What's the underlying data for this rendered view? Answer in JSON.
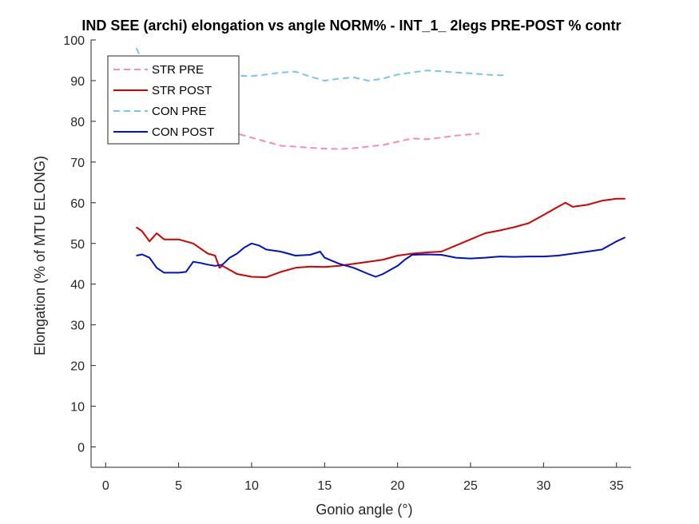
{
  "chart_data": {
    "type": "line",
    "title": "IND SEE (archi) elongation vs angle NORM% - INT_1_ 2legs PRE-POST % contr",
    "xlabel": "Gonio angle (°)",
    "ylabel": "Elongation (% of MTU ELONG)",
    "xlim": [
      -1,
      36
    ],
    "ylim": [
      -5,
      100
    ],
    "xticks": [
      0,
      5,
      10,
      15,
      20,
      25,
      30,
      35
    ],
    "yticks": [
      0,
      10,
      20,
      30,
      40,
      50,
      60,
      70,
      80,
      90,
      100
    ],
    "grid": false,
    "legend_position": "top-left",
    "series": [
      {
        "name": "STR PRE",
        "color": "#f58cb4",
        "style": "dashed",
        "x": [
          2.1,
          3,
          4,
          5,
          6,
          7,
          8,
          9,
          10,
          11,
          12,
          13,
          14,
          15,
          16,
          17,
          18,
          19,
          20,
          21,
          22,
          23,
          24,
          25,
          25.6
        ],
        "y": [
          88,
          85,
          83,
          81.5,
          80,
          79,
          78,
          77,
          76,
          75,
          74,
          73.8,
          73.5,
          73.3,
          73.2,
          73.4,
          73.8,
          74.2,
          75,
          75.8,
          75.6,
          76,
          76.5,
          76.8,
          77
        ]
      },
      {
        "name": "STR POST",
        "color": "#d40000",
        "style": "solid",
        "x": [
          2.1,
          2.5,
          3,
          3.5,
          4,
          4.5,
          5,
          6,
          7,
          7.5,
          7.8,
          8,
          9,
          10,
          11,
          12,
          13,
          14,
          15,
          16,
          17,
          18,
          19,
          20,
          21,
          22,
          23,
          24,
          25,
          26,
          27,
          28,
          29,
          30,
          31,
          31.5,
          32,
          33,
          34,
          35,
          35.6
        ],
        "y": [
          54,
          53,
          50.5,
          52.5,
          51,
          51,
          51,
          50,
          47.5,
          47,
          44,
          44.5,
          42.5,
          41.8,
          41.7,
          43,
          44,
          44.3,
          44.2,
          44.5,
          45,
          45.5,
          46,
          47,
          47.5,
          47.8,
          48,
          49.5,
          51,
          52.5,
          53.2,
          54,
          55,
          57,
          59,
          60,
          59,
          59.5,
          60.5,
          61,
          61
        ]
      },
      {
        "name": "CON PRE",
        "color": "#7cc3f0",
        "style": "dashed",
        "x": [
          2.1,
          2.5,
          3,
          4,
          5,
          6,
          7,
          8,
          9,
          10,
          11,
          12,
          13,
          14,
          15,
          16,
          17,
          18,
          19,
          20,
          21,
          22,
          23,
          24,
          25,
          26,
          27,
          27.5
        ],
        "y": [
          98,
          95,
          94,
          93,
          92.5,
          92,
          91.5,
          91.3,
          91.2,
          91.1,
          91.5,
          92,
          92.2,
          91,
          90,
          90.5,
          90.8,
          90,
          90.5,
          91.5,
          92,
          92.5,
          92.3,
          92,
          91.8,
          91.5,
          91.3,
          91.3
        ]
      },
      {
        "name": "CON POST",
        "color": "#0010c8",
        "style": "solid",
        "x": [
          2.1,
          2.5,
          3,
          3.5,
          4,
          5,
          5.5,
          6,
          6.5,
          7,
          7.5,
          8,
          8.5,
          9,
          9.5,
          10,
          10.5,
          11,
          12,
          13,
          14,
          14.7,
          15,
          16,
          17,
          18,
          18.5,
          19,
          20,
          20.5,
          21,
          22,
          23,
          24,
          25,
          26,
          27,
          28,
          29,
          30,
          31,
          32,
          33,
          34,
          35,
          35.6
        ],
        "y": [
          47,
          47.3,
          46.5,
          44,
          42.8,
          42.8,
          43,
          45.5,
          45.2,
          44.8,
          44.5,
          44.8,
          46.5,
          47.5,
          49,
          50,
          49.5,
          48.5,
          48,
          47,
          47.2,
          48,
          46.5,
          45,
          44,
          42.5,
          41.8,
          42.5,
          44.5,
          46,
          47.2,
          47.3,
          47.2,
          46.5,
          46.3,
          46.5,
          46.8,
          46.7,
          46.8,
          46.8,
          47,
          47.5,
          48,
          48.5,
          50.5,
          51.5
        ]
      }
    ]
  }
}
